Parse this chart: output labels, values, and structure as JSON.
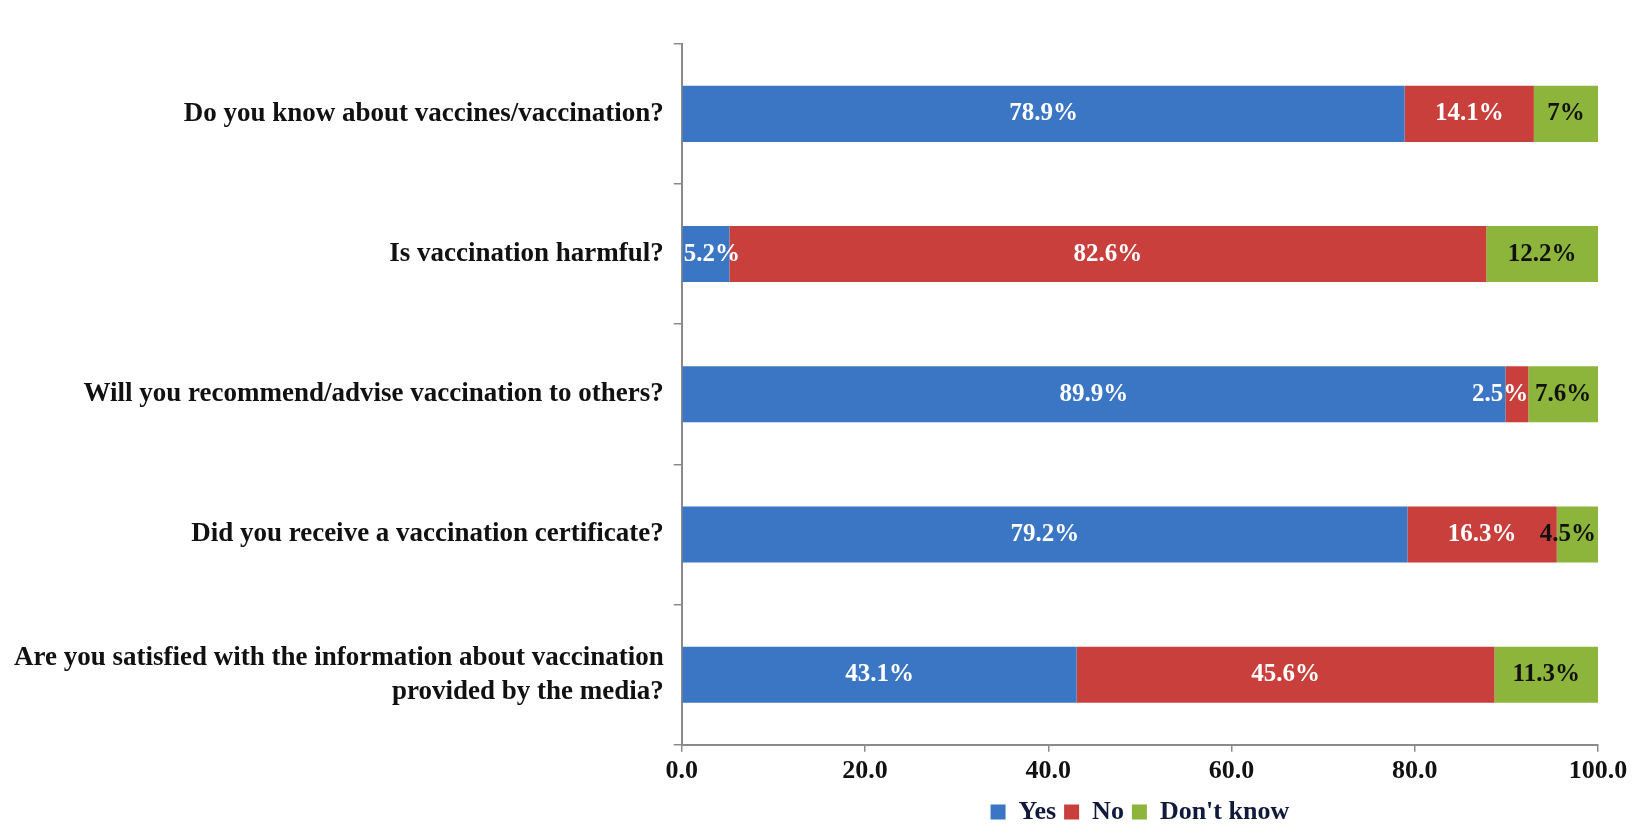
{
  "chart_data": {
    "type": "bar",
    "orientation": "horizontal",
    "stacked": true,
    "categories": [
      "Do you know about vaccines/vaccination?",
      "Is vaccination harmful?",
      "Will you recommend/advise vaccination to others?",
      "Did you receive a vaccination certificate?",
      "Are you satisfied with the information about vaccination provided by the media?"
    ],
    "series": [
      {
        "name": "Yes",
        "color": "#3b76c4",
        "values": [
          78.9,
          5.2,
          89.9,
          79.2,
          43.1
        ],
        "value_labels": [
          "78.9%",
          "5.2%",
          "89.9%",
          "79.2%",
          "43.1%"
        ]
      },
      {
        "name": "No",
        "color": "#c83f3c",
        "values": [
          14.1,
          82.6,
          2.5,
          16.3,
          45.6
        ],
        "value_labels": [
          "14.1%",
          "82.6%",
          "2.5%",
          "16.3%",
          "45.6%"
        ]
      },
      {
        "name": "Don't know",
        "color": "#8db43b",
        "values": [
          7,
          12.2,
          7.6,
          4.5,
          11.3
        ],
        "value_labels": [
          "7%",
          "12.2%",
          "7.6%",
          "4.5%",
          "11.3%"
        ]
      }
    ],
    "xlim": [
      0,
      100
    ],
    "xticks": [
      {
        "value": 0,
        "label": "0.0"
      },
      {
        "value": 20,
        "label": "20.0"
      },
      {
        "value": 40,
        "label": "40.0"
      },
      {
        "value": 60,
        "label": "60.0"
      },
      {
        "value": 80,
        "label": "80.0"
      },
      {
        "value": 100,
        "label": "100.0"
      }
    ],
    "legend": "bottom"
  }
}
